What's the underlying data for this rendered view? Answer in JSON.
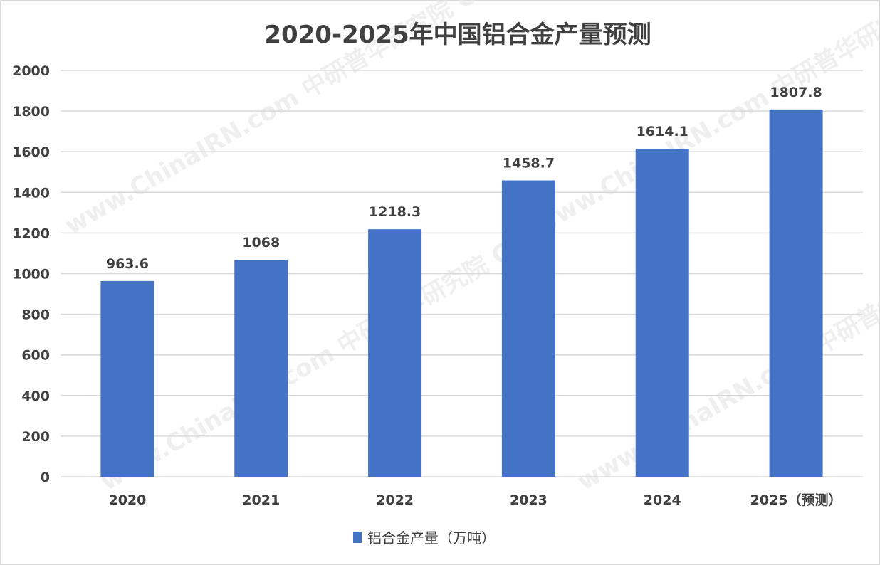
{
  "chart_data": {
    "type": "bar",
    "title": "2020-2025年中国铝合金产量预测",
    "categories": [
      "2020",
      "2021",
      "2022",
      "2023",
      "2024",
      "2025（预测）"
    ],
    "series": [
      {
        "name": "铝合金产量（万吨）",
        "values": [
          963.6,
          1068,
          1218.3,
          1458.7,
          1614.1,
          1807.8
        ],
        "color": "#4472c4"
      }
    ],
    "data_labels": [
      "963.6",
      "1068",
      "1218.3",
      "1458.7",
      "1614.1",
      "1807.8"
    ],
    "yticks": [
      "0",
      "200",
      "400",
      "600",
      "800",
      "1000",
      "1200",
      "1400",
      "1600",
      "1800",
      "2000"
    ],
    "ylim": [
      0,
      2000
    ],
    "grid": true,
    "legend_position": "bottom"
  },
  "watermark": "www.ChinaIRN.com 中研普华研究院 CIRN"
}
